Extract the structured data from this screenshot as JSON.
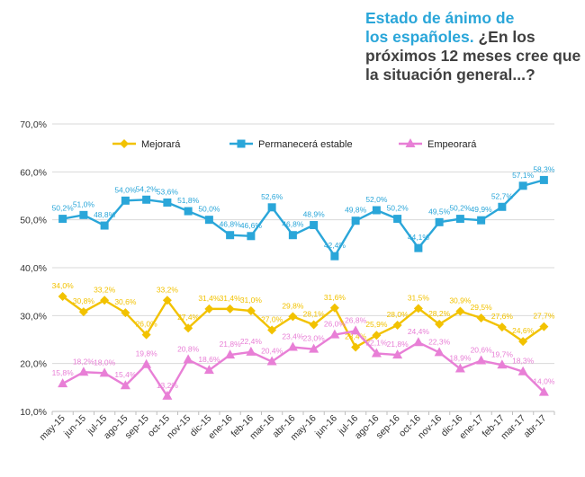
{
  "title": {
    "part1": "Estado de ánimo de",
    "part2": "los españoles.",
    "part3": " ¿En los próximos 12 meses cree que la situación general...?"
  },
  "chart_data": {
    "type": "line",
    "categories": [
      "may-15",
      "jun-15",
      "jul-15",
      "ago-15",
      "sep-15",
      "oct-15",
      "nov-15",
      "dic-15",
      "ene-16",
      "feb-16",
      "mar-16",
      "abr-16",
      "may-16",
      "jun-16",
      "jul-16",
      "ago-16",
      "sep-16",
      "oct-16",
      "nov-16",
      "dic-16",
      "ene-17",
      "feb-17",
      "mar-17",
      "abr-17"
    ],
    "ylim": [
      10,
      70
    ],
    "yticks": [
      "10,0%",
      "20,0%",
      "30,0%",
      "40,0%",
      "50,0%",
      "60,0%",
      "70,0%"
    ],
    "legend_position": "top",
    "series": [
      {
        "name": "Mejorará",
        "color": "#f2c200",
        "marker": "diamond",
        "values": [
          34.0,
          30.8,
          33.2,
          30.6,
          26.0,
          33.2,
          27.4,
          31.4,
          31.4,
          31.0,
          27.0,
          29.8,
          28.1,
          31.6,
          23.4,
          25.9,
          28.0,
          31.5,
          28.2,
          30.9,
          29.5,
          27.6,
          24.6,
          27.7
        ],
        "labels": [
          "34,0%",
          "30,8%",
          "33,2%",
          "30,6%",
          "26,0%",
          "33,2%",
          "27,4%",
          "31,4%",
          "31,4%",
          "31,0%",
          "27,0%",
          "29,8%",
          "28,1%",
          "31,6%",
          "23,4%",
          "25,9%",
          "28,0%",
          "31,5%",
          "28,2%",
          "30,9%",
          "29,5%",
          "27,6%",
          "24,6%",
          "27,7%"
        ]
      },
      {
        "name": "Permanecerá estable",
        "color": "#2aa6d9",
        "marker": "square",
        "values": [
          50.2,
          51.0,
          48.8,
          54.0,
          54.2,
          53.6,
          51.8,
          50.0,
          46.8,
          46.6,
          52.6,
          46.8,
          48.9,
          42.4,
          49.8,
          52.0,
          50.2,
          44.1,
          49.5,
          50.2,
          49.9,
          52.7,
          57.1,
          58.3
        ],
        "labels": [
          "50,2%",
          "51,0%",
          "48,8%",
          "54,0%",
          "54,2%",
          "53,6%",
          "51,8%",
          "50,0%",
          "46,8%",
          "46,6%",
          "52,6%",
          "46,8%",
          "48,9%",
          "42,4%",
          "49,8%",
          "52,0%",
          "50,2%",
          "44,1%",
          "49,5%",
          "50,2%",
          "49,9%",
          "52,7%",
          "57,1%",
          "58,3%"
        ]
      },
      {
        "name": "Empeorará",
        "color": "#e87fd6",
        "marker": "triangle",
        "values": [
          15.8,
          18.2,
          18.0,
          15.4,
          19.8,
          13.2,
          20.8,
          18.6,
          21.8,
          22.4,
          20.4,
          23.4,
          23.0,
          26.0,
          26.8,
          22.1,
          21.8,
          24.4,
          22.3,
          18.9,
          20.6,
          19.7,
          18.3,
          14.0
        ],
        "labels": [
          "15,8%",
          "18,2%",
          "18,0%",
          "15,4%",
          "19,8%",
          "13,2%",
          "20,8%",
          "18,6%",
          "21,8%",
          "22,4%",
          "20,4%",
          "23,4%",
          "23,0%",
          "26,0%",
          "26,8%",
          "22,1%",
          "21,8%",
          "24,4%",
          "22,3%",
          "18,9%",
          "20,6%",
          "19,7%",
          "18,3%",
          "14,0%"
        ]
      }
    ]
  }
}
